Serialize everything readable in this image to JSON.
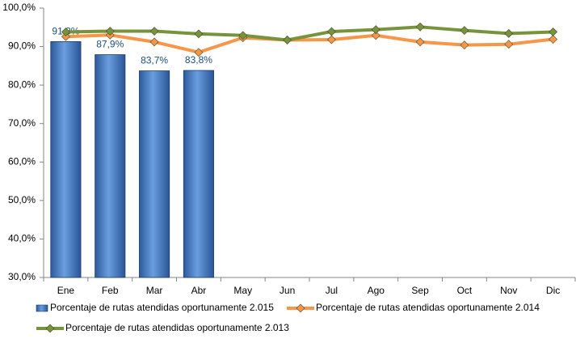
{
  "chart_data": {
    "type": "combo",
    "categories": [
      "Ene",
      "Feb",
      "Mar",
      "Abr",
      "May",
      "Jun",
      "Jul",
      "Ago",
      "Sep",
      "Oct",
      "Nov",
      "Dic"
    ],
    "series": [
      {
        "name": "Porcentaje de rutas atendidas oportunamente 2.015",
        "type": "bar",
        "color": "#4f81bd",
        "values": [
          91.3,
          87.9,
          83.7,
          83.8,
          null,
          null,
          null,
          null,
          null,
          null,
          null,
          null
        ],
        "value_labels": [
          "91,3%",
          "87,9%",
          "83,7%",
          "83,8%",
          null,
          null,
          null,
          null,
          null,
          null,
          null,
          null
        ]
      },
      {
        "name": "Porcentaje de rutas atendidas oportunamente 2.014",
        "type": "line",
        "color": "#f79646",
        "values": [
          92.6,
          93.0,
          91.2,
          88.5,
          92.3,
          91.7,
          91.8,
          92.9,
          91.2,
          90.4,
          90.6,
          91.9
        ]
      },
      {
        "name": "Porcentaje de rutas atendidas oportunamente 2.013",
        "type": "line",
        "color": "#77933c",
        "values": [
          93.8,
          94.0,
          94.0,
          93.3,
          92.9,
          91.7,
          93.9,
          94.4,
          95.1,
          94.2,
          93.4,
          93.8
        ]
      }
    ],
    "ylim": [
      30,
      100
    ],
    "yticks": [
      {
        "value": 30,
        "label": "30,0%"
      },
      {
        "value": 40,
        "label": "40,0%"
      },
      {
        "value": 50,
        "label": "50,0%"
      },
      {
        "value": 60,
        "label": "60,0%"
      },
      {
        "value": 70,
        "label": "70,0%"
      },
      {
        "value": 80,
        "label": "80,0%"
      },
      {
        "value": 90,
        "label": "90,0%"
      },
      {
        "value": 100,
        "label": "100,0%"
      }
    ],
    "grid": false,
    "legend": "bottom"
  }
}
